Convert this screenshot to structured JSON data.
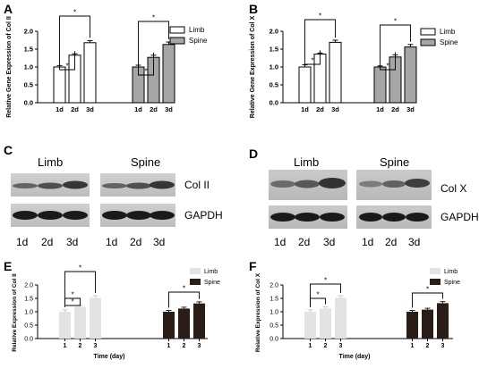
{
  "panel_letters": [
    "A",
    "B",
    "C",
    "D",
    "E",
    "F"
  ],
  "chart_data": [
    {
      "panel": "A",
      "type": "bar",
      "groups": [
        "Limb",
        "Spine"
      ],
      "categories": [
        "1d",
        "2d",
        "3d"
      ],
      "series": [
        {
          "name": "Limb",
          "values": [
            1.0,
            1.33,
            1.68
          ],
          "errors": [
            0.04,
            0.04,
            0.06
          ]
        },
        {
          "name": "Spine",
          "values": [
            1.0,
            1.27,
            1.63
          ],
          "errors": [
            0.05,
            0.06,
            0.07
          ]
        }
      ],
      "title": "",
      "xlabel": "",
      "ylabel": "Relative Gene Expression of Col II",
      "ylim": [
        0,
        2.0
      ],
      "yticks": [
        "0.0",
        "0.5",
        "1.0",
        "1.5",
        "2.0"
      ],
      "legend": [
        {
          "name": "Limb",
          "color": "#ffffff"
        },
        {
          "name": "Spine",
          "color": "#a6a6a6"
        }
      ],
      "annotation": "*",
      "grid": false,
      "legend_position": "right"
    },
    {
      "panel": "B",
      "type": "bar",
      "groups": [
        "Limb",
        "Spine"
      ],
      "categories": [
        "1d",
        "2d",
        "3d"
      ],
      "series": [
        {
          "name": "Limb",
          "values": [
            1.0,
            1.36,
            1.69
          ],
          "errors": [
            0.06,
            0.03,
            0.06
          ]
        },
        {
          "name": "Spine",
          "values": [
            1.0,
            1.28,
            1.56
          ],
          "errors": [
            0.03,
            0.06,
            0.07
          ]
        }
      ],
      "title": "",
      "xlabel": "",
      "ylabel": "Relative Gene Expression of Col X",
      "ylim": [
        0,
        2.0
      ],
      "yticks": [
        "0.0",
        "0.5",
        "1.0",
        "1.5",
        "2.0"
      ],
      "legend": [
        {
          "name": "Limb",
          "color": "#ffffff"
        },
        {
          "name": "Spine",
          "color": "#a6a6a6"
        }
      ],
      "annotation": "*",
      "grid": false,
      "legend_position": "right"
    },
    {
      "panel": "E",
      "type": "bar",
      "categories": [
        "1",
        "2",
        "3"
      ],
      "series": [
        {
          "name": "Limb",
          "values": [
            1.0,
            1.19,
            1.52
          ],
          "errors": [
            0.07,
            0.05,
            0.08
          ]
        },
        {
          "name": "Spine",
          "values": [
            1.0,
            1.12,
            1.31
          ],
          "errors": [
            0.05,
            0.05,
            0.06
          ]
        }
      ],
      "title": "",
      "xlabel": "Time (day)",
      "ylabel": "Relative Expression of Col II",
      "ylim": [
        0,
        2.0
      ],
      "yticks": [
        "0.0",
        "0.5",
        "1.0",
        "1.5",
        "2.0"
      ],
      "legend": [
        {
          "name": "Limb",
          "color": "#e3e3e3"
        },
        {
          "name": "Spine",
          "color": "#2a1d18"
        }
      ],
      "annotation": "*",
      "grid": false,
      "legend_position": "top-right"
    },
    {
      "panel": "F",
      "type": "bar",
      "categories": [
        "1",
        "2",
        "3"
      ],
      "series": [
        {
          "name": "Limb",
          "values": [
            1.0,
            1.12,
            1.52
          ],
          "errors": [
            0.07,
            0.06,
            0.08
          ]
        },
        {
          "name": "Spine",
          "values": [
            1.0,
            1.08,
            1.32
          ],
          "errors": [
            0.05,
            0.05,
            0.06
          ]
        }
      ],
      "title": "",
      "xlabel": "Time (day)",
      "ylabel": "Relative Expression of Col X",
      "ylim": [
        0,
        2.0
      ],
      "yticks": [
        "0.0",
        "0.5",
        "1.0",
        "1.5",
        "2.0"
      ],
      "legend": [
        {
          "name": "Limb",
          "color": "#e3e3e3"
        },
        {
          "name": "Spine",
          "color": "#2a1d18"
        }
      ],
      "annotation": "*",
      "grid": false,
      "legend_position": "top-right"
    }
  ],
  "blots": {
    "C": {
      "groups": [
        "Limb",
        "Spine"
      ],
      "rows": [
        "Col II",
        "GAPDH"
      ],
      "lanes": [
        "1d",
        "2d",
        "3d"
      ]
    },
    "D": {
      "groups": [
        "Limb",
        "Spine"
      ],
      "rows": [
        "Col X",
        "GAPDH"
      ],
      "lanes": [
        "1d",
        "2d",
        "3d"
      ]
    }
  }
}
